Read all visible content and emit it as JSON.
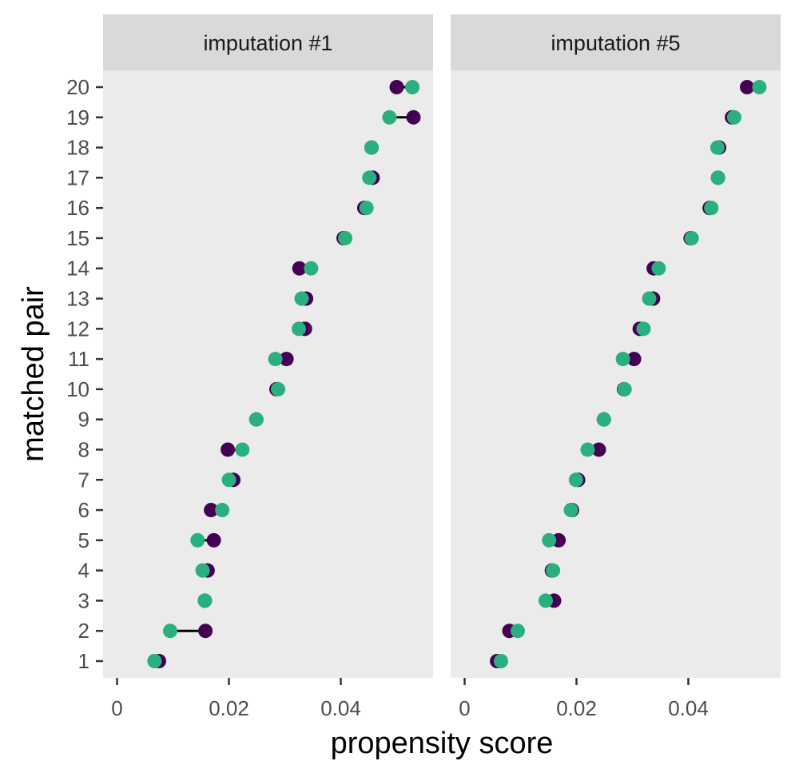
{
  "chart_data": {
    "type": "scatter",
    "subtype": "dumbbell-faceted",
    "xlabel": "propensity score",
    "ylabel": "matched pair",
    "xlim": [
      -0.0025,
      0.0565
    ],
    "xticks": [
      0,
      0.02,
      0.04
    ],
    "xtick_labels": [
      "0",
      "0.02",
      "0.04"
    ],
    "y_categories": [
      "1",
      "2",
      "3",
      "4",
      "5",
      "6",
      "7",
      "8",
      "9",
      "10",
      "11",
      "12",
      "13",
      "14",
      "15",
      "16",
      "17",
      "18",
      "19",
      "20"
    ],
    "colors": {
      "series_a": "#440154",
      "series_b": "#2ab07f",
      "connector": "#000000",
      "panel_bg": "#ebebeb",
      "strip_bg": "#d9d9d9"
    },
    "facets": [
      {
        "label": "imputation #1",
        "pairs": [
          {
            "pair": 1,
            "a": 0.0075,
            "b": 0.0067
          },
          {
            "pair": 2,
            "a": 0.0158,
            "b": 0.0095
          },
          {
            "pair": 3,
            "a": 0.0157,
            "b": 0.0157
          },
          {
            "pair": 4,
            "a": 0.0162,
            "b": 0.0153
          },
          {
            "pair": 5,
            "a": 0.0173,
            "b": 0.0144
          },
          {
            "pair": 6,
            "a": 0.0168,
            "b": 0.0188
          },
          {
            "pair": 7,
            "a": 0.0208,
            "b": 0.02
          },
          {
            "pair": 8,
            "a": 0.0198,
            "b": 0.0224
          },
          {
            "pair": 9,
            "a": 0.0249,
            "b": 0.0249
          },
          {
            "pair": 10,
            "a": 0.0285,
            "b": 0.0288
          },
          {
            "pair": 11,
            "a": 0.0303,
            "b": 0.0283
          },
          {
            "pair": 12,
            "a": 0.0336,
            "b": 0.0325
          },
          {
            "pair": 13,
            "a": 0.0338,
            "b": 0.033
          },
          {
            "pair": 14,
            "a": 0.0326,
            "b": 0.0347
          },
          {
            "pair": 15,
            "a": 0.0405,
            "b": 0.0408
          },
          {
            "pair": 16,
            "a": 0.0442,
            "b": 0.0446
          },
          {
            "pair": 17,
            "a": 0.0457,
            "b": 0.0451
          },
          {
            "pair": 18,
            "a": 0.0455,
            "b": 0.0455
          },
          {
            "pair": 19,
            "a": 0.053,
            "b": 0.0487
          },
          {
            "pair": 20,
            "a": 0.05,
            "b": 0.0528
          }
        ]
      },
      {
        "label": "imputation #5",
        "pairs": [
          {
            "pair": 1,
            "a": 0.0058,
            "b": 0.0065
          },
          {
            "pair": 2,
            "a": 0.008,
            "b": 0.0095
          },
          {
            "pair": 3,
            "a": 0.016,
            "b": 0.0145
          },
          {
            "pair": 4,
            "a": 0.0156,
            "b": 0.0158
          },
          {
            "pair": 5,
            "a": 0.0168,
            "b": 0.0151
          },
          {
            "pair": 6,
            "a": 0.0192,
            "b": 0.019
          },
          {
            "pair": 7,
            "a": 0.0203,
            "b": 0.0199
          },
          {
            "pair": 8,
            "a": 0.024,
            "b": 0.022
          },
          {
            "pair": 9,
            "a": 0.0249,
            "b": 0.0249
          },
          {
            "pair": 10,
            "a": 0.0285,
            "b": 0.0286
          },
          {
            "pair": 11,
            "a": 0.0303,
            "b": 0.0283
          },
          {
            "pair": 12,
            "a": 0.0313,
            "b": 0.032
          },
          {
            "pair": 13,
            "a": 0.0337,
            "b": 0.033
          },
          {
            "pair": 14,
            "a": 0.0338,
            "b": 0.0347
          },
          {
            "pair": 15,
            "a": 0.0404,
            "b": 0.0406
          },
          {
            "pair": 16,
            "a": 0.0438,
            "b": 0.0441
          },
          {
            "pair": 17,
            "a": 0.0453,
            "b": 0.0453
          },
          {
            "pair": 18,
            "a": 0.0455,
            "b": 0.0452
          },
          {
            "pair": 19,
            "a": 0.0478,
            "b": 0.0482
          },
          {
            "pair": 20,
            "a": 0.0505,
            "b": 0.0527
          }
        ]
      }
    ]
  }
}
